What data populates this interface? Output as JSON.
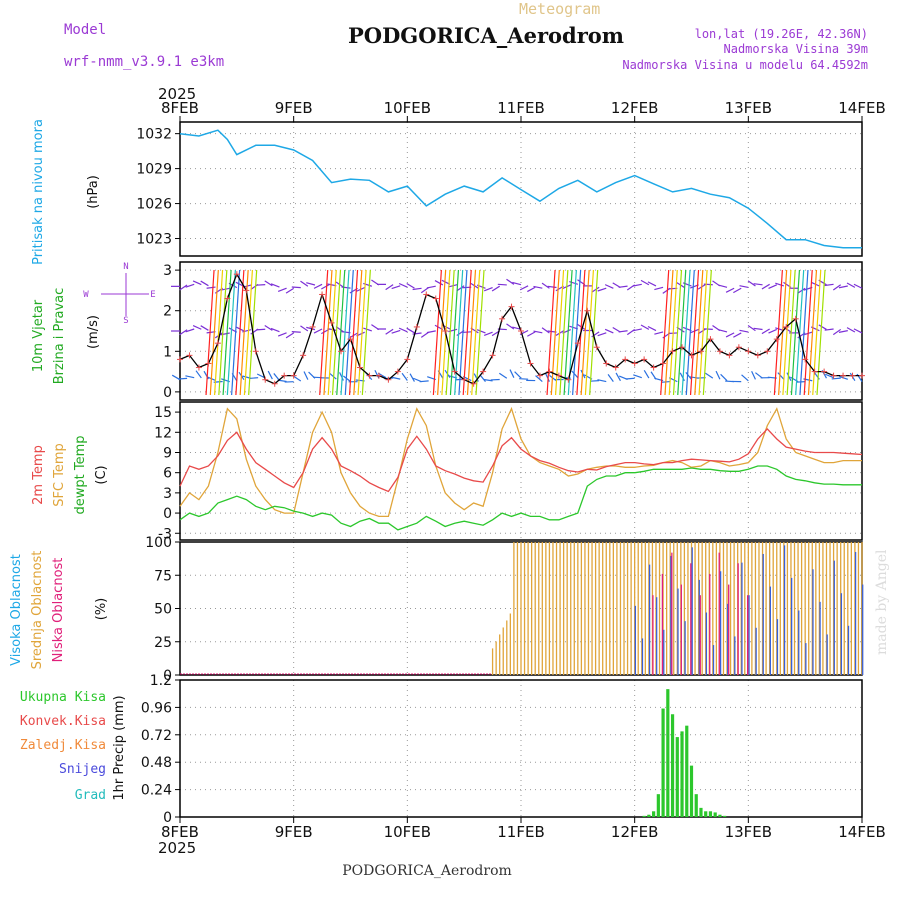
{
  "header": {
    "title": "PODGORICA_Aerodrom",
    "subtitle": "Meteogram",
    "model_label": "Model",
    "model_value": "wrf-nmm_v3.9.1 e3km",
    "coords": "lon,lat (19.26E, 42.36N)",
    "elevation": "Nadmorska Visina 39m",
    "model_elevation": "Nadmorska Visina u modelu 64.4592m",
    "footer_title": "PODGORICA_Aerodrom",
    "watermark": "made by Angel"
  },
  "colors": {
    "pressure": "#1ea8e6",
    "temp2m": "#e84a4a",
    "sfc": "#e0a53a",
    "dew": "#2cc72c",
    "high_cloud": "#3a60d8",
    "mid_cloud": "#e0a53a",
    "low_cloud": "#e0207a",
    "wind_label": "#22aa22",
    "precip": "#2cc72c",
    "violet": "#9b3ad4"
  },
  "chart_data": [
    {
      "type": "line",
      "id": "pressure",
      "title": "Pritisak na nivou mora",
      "ylabel": "(hPa)",
      "ylim": [
        1021.5,
        1033
      ],
      "yticks": [
        1023,
        1026,
        1029,
        1032
      ],
      "xlim": [
        0,
        144
      ],
      "series": [
        {
          "name": "Pritisak",
          "color_key": "pressure",
          "x": [
            0,
            4,
            8,
            10,
            12,
            16,
            20,
            24,
            28,
            32,
            36,
            40,
            44,
            48,
            52,
            56,
            60,
            64,
            68,
            72,
            76,
            80,
            84,
            88,
            92,
            96,
            100,
            104,
            108,
            112,
            116,
            120,
            124,
            128,
            132,
            136,
            140,
            144
          ],
          "y": [
            1032,
            1031.8,
            1032.3,
            1031.5,
            1030.2,
            1031,
            1031,
            1030.6,
            1029.7,
            1027.8,
            1028.1,
            1028,
            1027,
            1027.5,
            1025.8,
            1026.8,
            1027.5,
            1027,
            1028.2,
            1027.2,
            1026.2,
            1027.3,
            1028,
            1027,
            1027.8,
            1028.4,
            1027.7,
            1027,
            1027.3,
            1026.8,
            1026.5,
            1025.6,
            1024.3,
            1022.9,
            1022.9,
            1022.4,
            1022.2,
            1022.2
          ]
        }
      ]
    },
    {
      "type": "line",
      "id": "wind",
      "title": "10m Vjetar Brzina i Pravac",
      "ylabel": "(m/s)",
      "ylim": [
        -0.2,
        3.2
      ],
      "yticks": [
        0,
        1,
        2,
        3
      ],
      "compass": {
        "n": "N",
        "s": "S",
        "e": "E",
        "w": "W"
      },
      "series": [
        {
          "name": "Brzina",
          "color_key": "black",
          "x": [
            0,
            2,
            4,
            6,
            8,
            10,
            12,
            14,
            16,
            18,
            20,
            22,
            24,
            26,
            28,
            30,
            32,
            34,
            36,
            38,
            40,
            42,
            44,
            46,
            48,
            50,
            52,
            54,
            56,
            58,
            60,
            62,
            64,
            66,
            68,
            70,
            72,
            74,
            76,
            78,
            80,
            82,
            84,
            86,
            88,
            90,
            92,
            94,
            96,
            98,
            100,
            102,
            104,
            106,
            108,
            110,
            112,
            114,
            116,
            118,
            120,
            122,
            124,
            126,
            128,
            130,
            132,
            134,
            136,
            138,
            140,
            142,
            144
          ],
          "y": [
            0.8,
            0.9,
            0.6,
            0.7,
            1.2,
            2.3,
            2.9,
            2.5,
            1.0,
            0.3,
            0.2,
            0.4,
            0.4,
            0.9,
            1.6,
            2.4,
            1.7,
            1.0,
            1.3,
            0.6,
            0.4,
            0.4,
            0.3,
            0.5,
            0.8,
            1.6,
            2.4,
            2.3,
            1.5,
            0.5,
            0.3,
            0.2,
            0.5,
            0.9,
            1.8,
            2.1,
            1.5,
            0.7,
            0.4,
            0.5,
            0.4,
            0.3,
            1.2,
            2.0,
            1.1,
            0.7,
            0.6,
            0.8,
            0.7,
            0.8,
            0.6,
            0.7,
            1.0,
            1.1,
            0.9,
            1.0,
            1.3,
            1.0,
            0.9,
            1.1,
            1.0,
            0.9,
            1.0,
            1.3,
            1.6,
            1.8,
            0.8,
            0.5,
            0.5,
            0.4,
            0.4,
            0.4,
            0.4
          ]
        }
      ]
    },
    {
      "type": "line",
      "id": "temperature",
      "title": "2m Temp / SFC Temp / dewpt Temp",
      "ylabel": "(C)",
      "ylim": [
        -4,
        16.5
      ],
      "yticks": [
        -3,
        0,
        3,
        6,
        9,
        12,
        15
      ],
      "series": [
        {
          "name": "2m Temp",
          "color_key": "temp2m",
          "x": [
            0,
            2,
            4,
            6,
            8,
            10,
            12,
            14,
            16,
            18,
            20,
            22,
            24,
            26,
            28,
            30,
            32,
            34,
            36,
            38,
            40,
            42,
            44,
            46,
            48,
            50,
            52,
            54,
            56,
            58,
            60,
            62,
            64,
            66,
            68,
            70,
            72,
            74,
            76,
            78,
            80,
            82,
            84,
            86,
            88,
            90,
            92,
            94,
            96,
            98,
            100,
            102,
            104,
            106,
            108,
            110,
            112,
            114,
            116,
            118,
            120,
            122,
            124,
            126,
            128,
            130,
            132,
            134,
            136,
            138,
            140,
            142,
            144
          ],
          "y": [
            4,
            7,
            6.5,
            7,
            8.5,
            10.8,
            12,
            9.5,
            7.5,
            6.5,
            5.5,
            4.5,
            3.8,
            6,
            9.5,
            11.2,
            9.5,
            7,
            6.3,
            5.5,
            4.5,
            3.8,
            3.2,
            5.3,
            9.5,
            11.4,
            9.5,
            7,
            6.3,
            5.8,
            5.2,
            4.8,
            4.6,
            7,
            10,
            11.2,
            9.5,
            8.5,
            7.8,
            7.4,
            6.8,
            6.3,
            6.1,
            6.5,
            6.4,
            6.9,
            7.2,
            7.5,
            7.5,
            7.3,
            7.2,
            7.5,
            7.5,
            7.8,
            8,
            7.9,
            7.8,
            7.7,
            7.6,
            8,
            8.8,
            11,
            12.5,
            11,
            9.8,
            9.5,
            9.2,
            9,
            9,
            9,
            8.9,
            8.8,
            8.7
          ]
        },
        {
          "name": "SFC Temp",
          "color_key": "sfc",
          "x": [
            0,
            2,
            4,
            6,
            8,
            10,
            12,
            14,
            16,
            18,
            20,
            22,
            24,
            26,
            28,
            30,
            32,
            34,
            36,
            38,
            40,
            42,
            44,
            46,
            48,
            50,
            52,
            54,
            56,
            58,
            60,
            62,
            64,
            66,
            68,
            70,
            72,
            74,
            76,
            78,
            80,
            82,
            84,
            86,
            88,
            90,
            92,
            94,
            96,
            98,
            100,
            102,
            104,
            106,
            108,
            110,
            112,
            114,
            116,
            118,
            120,
            122,
            124,
            126,
            128,
            130,
            132,
            134,
            136,
            138,
            140,
            142,
            144
          ],
          "y": [
            1,
            3,
            2,
            4,
            9,
            15.5,
            14,
            8,
            4,
            2,
            0.5,
            0,
            0,
            6,
            12,
            15,
            12,
            6,
            3,
            1,
            0,
            -0.5,
            -0.5,
            5,
            11,
            15.5,
            13,
            7,
            3,
            1.5,
            0.5,
            1.5,
            1,
            6,
            12.5,
            15.5,
            11,
            8.5,
            7.5,
            7,
            6.5,
            5.5,
            5.8,
            6.5,
            6.8,
            7,
            7,
            6.8,
            6.8,
            7,
            7.1,
            7.5,
            7.8,
            7.5,
            6.8,
            7,
            7.8,
            7.5,
            7,
            7.2,
            7.5,
            9,
            13,
            15.5,
            11,
            9,
            8.5,
            8,
            7.5,
            7.5,
            7.8,
            7.8,
            7.8
          ]
        },
        {
          "name": "dewpt Temp",
          "color_key": "dew",
          "x": [
            0,
            2,
            4,
            6,
            8,
            10,
            12,
            14,
            16,
            18,
            20,
            22,
            24,
            26,
            28,
            30,
            32,
            34,
            36,
            38,
            40,
            42,
            44,
            46,
            48,
            50,
            52,
            54,
            56,
            58,
            60,
            62,
            64,
            66,
            68,
            70,
            72,
            74,
            76,
            78,
            80,
            82,
            84,
            86,
            88,
            90,
            92,
            94,
            96,
            98,
            100,
            102,
            104,
            106,
            108,
            110,
            112,
            114,
            116,
            118,
            120,
            122,
            124,
            126,
            128,
            130,
            132,
            134,
            136,
            138,
            140,
            142,
            144
          ],
          "y": [
            -1,
            0,
            -0.5,
            0,
            1.5,
            2,
            2.5,
            2,
            1,
            0.5,
            1,
            0.8,
            0.3,
            0,
            -0.5,
            0,
            -0.3,
            -1.5,
            -2,
            -1.2,
            -0.8,
            -1.5,
            -1.5,
            -2.5,
            -2,
            -1.5,
            -0.5,
            -1.2,
            -2,
            -1.5,
            -1.2,
            -1.5,
            -1.8,
            -1,
            0,
            -0.5,
            0,
            -0.5,
            -0.5,
            -1,
            -1,
            -0.5,
            0,
            4,
            5,
            5.5,
            5.5,
            6,
            6,
            6.2,
            6.5,
            6.5,
            6.5,
            6.5,
            6.7,
            6.5,
            6.5,
            6.3,
            6.2,
            6.2,
            6.5,
            7,
            7,
            6.5,
            5.5,
            5,
            4.8,
            4.5,
            4.3,
            4.3,
            4.2,
            4.2,
            4.2
          ]
        }
      ]
    },
    {
      "type": "bar",
      "id": "cloud",
      "title": "Visoka / Srednja / Niska Oblacnost",
      "ylabel": "(%)",
      "ylim": [
        0,
        100
      ],
      "yticks": [
        0,
        25,
        50,
        75,
        100
      ],
      "legend": [
        "Visoka Oblacnost",
        "Srednja Oblacnost",
        "Niska Oblacnost"
      ]
    },
    {
      "type": "bar",
      "id": "precip",
      "title": "1hr Precip",
      "ylabel": "(mm)",
      "ylim": [
        0,
        1.2
      ],
      "yticks": [
        0,
        0.24,
        0.48,
        0.72,
        0.96,
        1.2
      ],
      "legend": [
        "Ukupna Kisa",
        "Konvek.Kisa",
        "Zaledj.Kisa",
        "Snijeg",
        "Grad"
      ],
      "series": [
        {
          "name": "Ukupna Kisa",
          "color_key": "precip",
          "x": [
            98,
            99,
            100,
            101,
            102,
            103,
            104,
            105,
            106,
            107,
            108,
            109,
            110,
            111,
            112,
            113,
            114,
            115
          ],
          "y": [
            0.01,
            0.02,
            0.05,
            0.2,
            0.95,
            1.12,
            0.9,
            0.7,
            0.75,
            0.8,
            0.45,
            0.2,
            0.08,
            0.05,
            0.05,
            0.04,
            0.02,
            0.01
          ]
        }
      ]
    }
  ],
  "xaxis": {
    "year": "2025",
    "ticks": [
      "8FEB",
      "9FEB",
      "10FEB",
      "11FEB",
      "12FEB",
      "13FEB",
      "14FEB"
    ]
  }
}
